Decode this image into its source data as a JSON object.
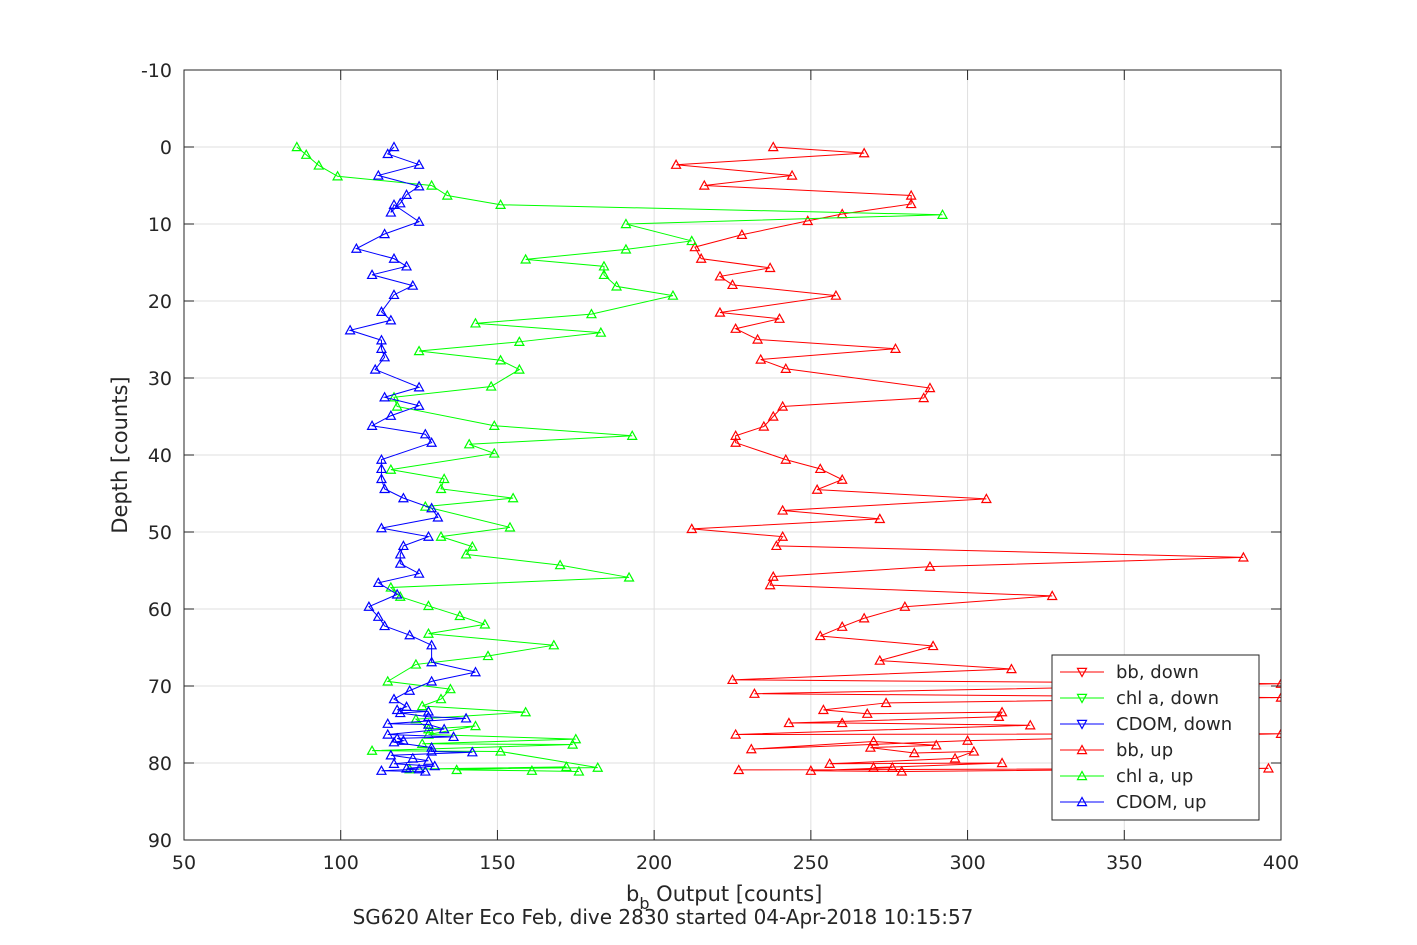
{
  "figure": {
    "caption": "SG620 Alter Eco Feb, dive 2830 started 04-Apr-2018 10:15:57"
  },
  "chart_data": {
    "type": "line",
    "xlabel_main": "b",
    "xlabel_sub": "b",
    "xlabel_rest": " Output [counts]",
    "ylabel": "Depth [counts]",
    "xlim": [
      50,
      400
    ],
    "ylim": [
      -10,
      90
    ],
    "y_reversed": true,
    "grid": true,
    "xticks": [
      50,
      100,
      150,
      200,
      250,
      300,
      350,
      400
    ],
    "yticks": [
      -10,
      0,
      10,
      20,
      30,
      40,
      50,
      60,
      70,
      80,
      90
    ],
    "legend_position": "bottom-right",
    "legend": [
      {
        "label": "bb, down",
        "color": "#ff0000",
        "marker": "down"
      },
      {
        "label": "chl a, down",
        "color": "#00ff00",
        "marker": "down"
      },
      {
        "label": "CDOM, down",
        "color": "#0000ff",
        "marker": "down"
      },
      {
        "label": "bb, up",
        "color": "#ff0000",
        "marker": "up"
      },
      {
        "label": "chl a, up",
        "color": "#00ff00",
        "marker": "up"
      },
      {
        "label": "CDOM, up",
        "color": "#0000ff",
        "marker": "up"
      }
    ],
    "series": [
      {
        "name": "bb, up",
        "color": "#ff0000",
        "marker": "up",
        "x": [
          238,
          267,
          207,
          244,
          216,
          282,
          282,
          260,
          249,
          228,
          213,
          215,
          237,
          221,
          225,
          258,
          221,
          240,
          226,
          233,
          277,
          234,
          242,
          288,
          286,
          241,
          238,
          235,
          226,
          226,
          242,
          253,
          260,
          252,
          306,
          241,
          272,
          212,
          241,
          239,
          388,
          288,
          238,
          237,
          327,
          280,
          267,
          260,
          253,
          289,
          272,
          314,
          225,
          400,
          232,
          400,
          274,
          254,
          268,
          311,
          310,
          243,
          260,
          320,
          226,
          400,
          300,
          231,
          270,
          290,
          269,
          283,
          302,
          296,
          256,
          311,
          270,
          276,
          250,
          279,
          396,
          227
        ],
        "y": [
          0,
          0.8,
          2.3,
          3.7,
          5,
          6.3,
          7.4,
          8.7,
          9.6,
          11.4,
          13,
          14.5,
          15.7,
          16.8,
          17.9,
          19.3,
          21.5,
          22.3,
          23.6,
          25,
          26.2,
          27.6,
          28.8,
          31.3,
          32.6,
          33.7,
          35,
          36.3,
          37.5,
          38.4,
          40.6,
          41.8,
          43.2,
          44.5,
          45.7,
          47.2,
          48.3,
          49.6,
          50.6,
          51.8,
          53.3,
          54.5,
          55.8,
          56.9,
          58.3,
          59.7,
          61.2,
          62.3,
          63.5,
          64.8,
          66.7,
          67.8,
          69.2,
          69.7,
          71,
          71.5,
          72.2,
          73.1,
          73.6,
          73.4,
          74,
          74.8,
          74.8,
          75.1,
          76.3,
          76.2,
          77.1,
          78.2,
          77.2,
          77.7,
          78,
          78.7,
          78.5,
          79.4,
          80.1,
          80,
          80.6,
          80.6,
          81,
          81.1,
          80.7,
          80.9
        ]
      },
      {
        "name": "chl a, up",
        "color": "#00ff00",
        "marker": "up",
        "x": [
          86,
          89,
          93,
          99,
          129,
          134,
          151,
          292,
          191,
          212,
          191,
          159,
          184,
          184,
          188,
          206,
          180,
          143,
          183,
          157,
          125,
          151,
          157,
          148,
          117,
          118,
          149,
          193,
          141,
          149,
          116,
          133,
          132,
          155,
          127,
          154,
          132,
          142,
          140,
          170,
          192,
          116,
          119,
          128,
          138,
          146,
          128,
          168,
          147,
          124,
          115,
          135,
          132,
          126,
          159,
          124,
          128,
          143,
          128,
          175,
          126,
          174,
          110,
          151,
          182,
          122,
          172,
          137,
          161,
          176
        ],
        "y": [
          0,
          1,
          2.4,
          3.8,
          5,
          6.3,
          7.5,
          8.8,
          10,
          12.2,
          13.3,
          14.6,
          15.5,
          16.6,
          18.1,
          19.3,
          21.7,
          22.9,
          24.1,
          25.3,
          26.5,
          27.7,
          28.9,
          31.1,
          32.5,
          33.7,
          36.2,
          37.5,
          38.6,
          39.8,
          41.9,
          43.1,
          44.4,
          45.6,
          46.7,
          49.4,
          50.6,
          51.9,
          52.9,
          54.3,
          55.9,
          57.2,
          58.4,
          59.6,
          60.9,
          62,
          63.2,
          64.7,
          66.1,
          67.2,
          69.4,
          70.4,
          71.7,
          72.6,
          73.4,
          74.3,
          75.6,
          75.2,
          76.3,
          76.9,
          77.5,
          77.6,
          78.4,
          78.5,
          80.6,
          80.8,
          80.5,
          80.9,
          81,
          81.1
        ]
      },
      {
        "name": "CDOM, up",
        "color": "#0000ff",
        "marker": "up",
        "x": [
          117,
          115,
          125,
          112,
          125,
          121,
          119,
          116,
          117,
          125,
          114,
          105,
          117,
          121,
          110,
          123,
          117,
          113,
          116,
          103,
          113,
          113,
          114,
          111,
          125,
          114,
          125,
          116,
          110,
          127,
          129,
          113,
          113,
          113,
          114,
          120,
          129,
          131,
          113,
          128,
          120,
          119,
          119,
          125,
          112,
          118,
          109,
          112,
          114,
          122,
          129,
          129,
          143,
          129,
          122,
          117,
          121,
          118,
          128,
          119,
          128,
          140,
          115,
          128,
          133,
          115,
          136,
          118,
          120,
          117,
          129,
          129,
          142,
          116,
          123,
          128,
          117,
          130,
          121,
          125,
          113,
          127
        ],
        "y": [
          0,
          0.9,
          2.3,
          3.7,
          5.1,
          6.2,
          7.3,
          8.5,
          7.5,
          9.7,
          11.3,
          13.2,
          14.5,
          15.5,
          16.6,
          18,
          19.2,
          21.4,
          22.5,
          23.8,
          25.1,
          26.2,
          27.3,
          28.9,
          31.2,
          32.5,
          33.6,
          34.9,
          36.2,
          37.3,
          38.4,
          40.6,
          41.8,
          43.1,
          44.4,
          45.6,
          46.9,
          48.1,
          49.5,
          50.6,
          51.8,
          52.9,
          54.1,
          55.4,
          56.6,
          58.1,
          59.7,
          61,
          62.2,
          63.4,
          64.7,
          66.9,
          68.2,
          69.4,
          70.6,
          71.7,
          72.7,
          73.1,
          73.3,
          73.5,
          74,
          74.2,
          74.9,
          75,
          75.6,
          76.3,
          76.6,
          76.8,
          77.1,
          77.3,
          78,
          78.5,
          78.6,
          79,
          79.4,
          79.7,
          80.1,
          80.4,
          80.7,
          80.8,
          81,
          81.1
        ]
      }
    ]
  }
}
